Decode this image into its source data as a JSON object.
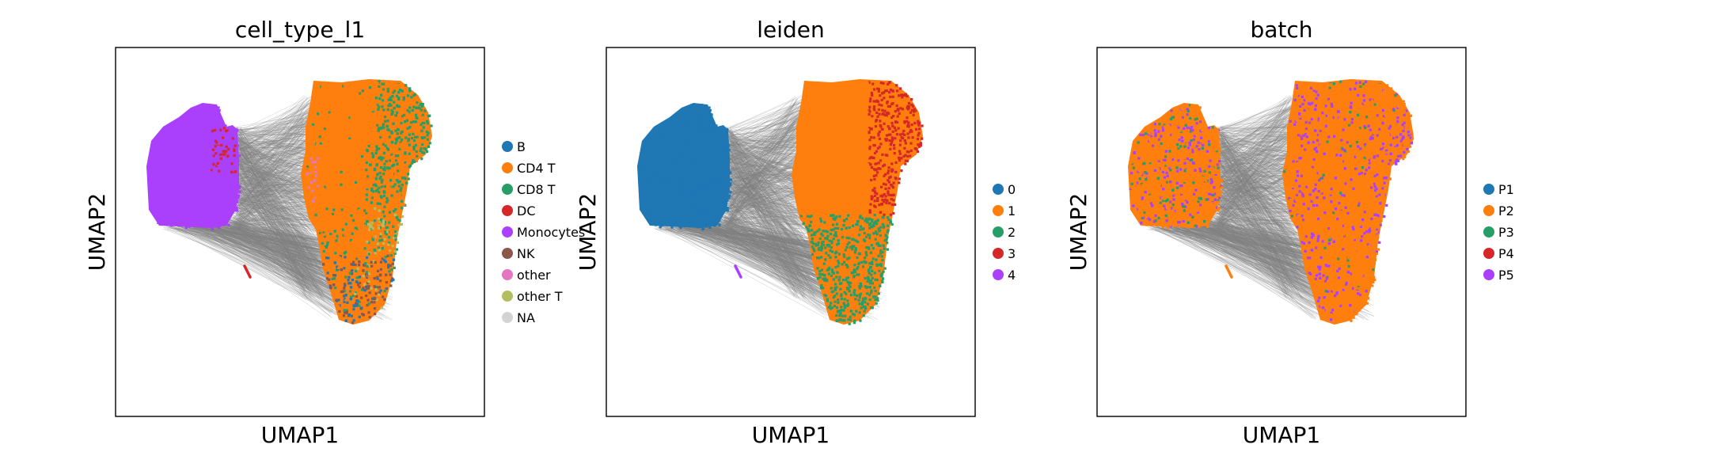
{
  "figure": {
    "background": "#ffffff",
    "edge_color": "#808080",
    "point_colors_note": "scanpy default palette"
  },
  "chart_data": [
    {
      "type": "scatter",
      "title": "cell_type_l1",
      "xlabel": "UMAP1",
      "ylabel": "UMAP2",
      "grid": false,
      "legend_position": "right",
      "legend": [
        {
          "label": "B",
          "color": "#1f77b4"
        },
        {
          "label": "CD4 T",
          "color": "#ff7f0e"
        },
        {
          "label": "CD8 T",
          "color": "#279e68"
        },
        {
          "label": "DC",
          "color": "#d62728"
        },
        {
          "label": "Monocytes",
          "color": "#aa40fc"
        },
        {
          "label": "NK",
          "color": "#8c564b"
        },
        {
          "label": "other",
          "color": "#e377c2"
        },
        {
          "label": "other T",
          "color": "#b5bd61"
        },
        {
          "label": "NA",
          "color": "#d3d3d3"
        }
      ]
    },
    {
      "type": "scatter",
      "title": "leiden",
      "xlabel": "UMAP1",
      "ylabel": "UMAP2",
      "grid": false,
      "legend_position": "right",
      "legend": [
        {
          "label": "0",
          "color": "#1f77b4"
        },
        {
          "label": "1",
          "color": "#ff7f0e"
        },
        {
          "label": "2",
          "color": "#279e68"
        },
        {
          "label": "3",
          "color": "#d62728"
        },
        {
          "label": "4",
          "color": "#aa40fc"
        }
      ]
    },
    {
      "type": "scatter",
      "title": "batch",
      "xlabel": "UMAP1",
      "ylabel": "UMAP2",
      "grid": false,
      "legend_position": "right",
      "legend": [
        {
          "label": "P1",
          "color": "#1f77b4"
        },
        {
          "label": "P2",
          "color": "#ff7f0e"
        },
        {
          "label": "P3",
          "color": "#279e68"
        },
        {
          "label": "P4",
          "color": "#d62728"
        },
        {
          "label": "P5",
          "color": "#aa40fc"
        }
      ]
    }
  ]
}
